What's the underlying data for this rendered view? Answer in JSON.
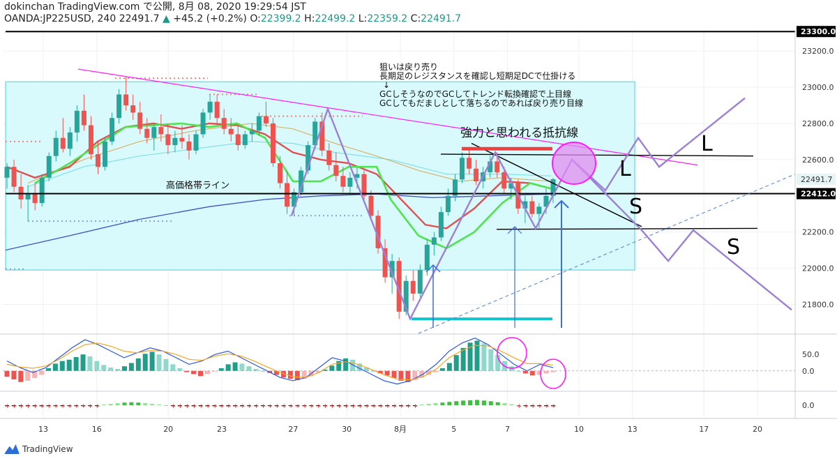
{
  "header": {
    "line1": "dokinchan TradingView.com で公開, 8月 08, 2020 19:29:54 JST",
    "symbol": "OANDA:JP225USD, 240",
    "last": "22491.7",
    "change": "+45.2 (+0.2%)",
    "o_label": "O:",
    "o": "22399.2",
    "h_label": "H:",
    "h": "22499.2",
    "l_label": "L:",
    "l": "22359.2",
    "c_label": "C:",
    "c": "22491.7"
  },
  "annotations": {
    "memo_lines": [
      "狙いは戻り売り",
      "長期足のレジスタンスを確認し短期足DCで仕掛ける",
      "↓",
      "GCしそうなのでGCしてトレンド転換確認で上目線",
      "GCしてもだましとして落ちるのであれば戻り売り目線"
    ],
    "resistance_label": "強力と思われる抵抗線",
    "band_label": "高価格帯ライン",
    "L1": "L",
    "L2": "L",
    "S1": "S",
    "S2": "S"
  },
  "footer": {
    "brand": "TradingView"
  },
  "colors": {
    "up": "#26a69a",
    "down": "#ef5350",
    "ma_green": "#4ee44e",
    "ma_red": "#e05050",
    "ma_tan": "#d7b26a",
    "ma_cyan": "#7fe0e8",
    "ma_blue": "#3f4fc8",
    "box_fill": "#d9fafc",
    "box_border": "#56dce4",
    "magenta": "#ff1aff",
    "purple": "#9d7fd6",
    "teal": "#14c2cc",
    "macd_blue": "#2a56e8",
    "macd_orange": "#f5a623"
  },
  "chart_data": {
    "type": "candlestick",
    "symbol": "OANDA:JP225USD",
    "timeframe": "240",
    "price_axis": {
      "ticks": [
        23300.0,
        23200.0,
        23000.0,
        22800.0,
        22600.0,
        22400.0,
        22200.0,
        22000.0,
        21800.0
      ],
      "ylim": [
        21640,
        23320
      ]
    },
    "x_ticks": [
      "13",
      "16",
      "20",
      "23",
      "27",
      "30",
      "8月",
      "5",
      "7",
      "10",
      "13",
      "17",
      "20"
    ],
    "x_tick_positions": [
      13,
      16,
      20,
      23,
      27,
      30,
      33,
      36,
      39,
      43,
      46,
      50,
      53
    ],
    "price_labels": [
      {
        "value": 22491.7,
        "text": "22491.7",
        "style": "last"
      },
      {
        "value": 22412.0,
        "text": "22412.0",
        "style": "black"
      },
      {
        "value": 23300.0,
        "text": "23300.0",
        "style": "black"
      }
    ],
    "ohlc": {
      "open": 22399.2,
      "high": 22499.2,
      "low": 22359.2,
      "close": 22491.7,
      "change": "+45.2 (+0.2%)"
    },
    "candles": [
      {
        "o": 22500,
        "h": 22580,
        "l": 22440,
        "c": 22560
      },
      {
        "o": 22560,
        "h": 22600,
        "l": 22420,
        "c": 22450
      },
      {
        "o": 22450,
        "h": 22520,
        "l": 22330,
        "c": 22380
      },
      {
        "o": 22380,
        "h": 22460,
        "l": 22260,
        "c": 22410
      },
      {
        "o": 22410,
        "h": 22470,
        "l": 22320,
        "c": 22360
      },
      {
        "o": 22360,
        "h": 22520,
        "l": 22340,
        "c": 22500
      },
      {
        "o": 22500,
        "h": 22640,
        "l": 22480,
        "c": 22620
      },
      {
        "o": 22620,
        "h": 22760,
        "l": 22590,
        "c": 22720
      },
      {
        "o": 22720,
        "h": 22830,
        "l": 22640,
        "c": 22660
      },
      {
        "o": 22660,
        "h": 22780,
        "l": 22620,
        "c": 22750
      },
      {
        "o": 22750,
        "h": 22900,
        "l": 22700,
        "c": 22870
      },
      {
        "o": 22870,
        "h": 22960,
        "l": 22760,
        "c": 22790
      },
      {
        "o": 22790,
        "h": 22840,
        "l": 22600,
        "c": 22630
      },
      {
        "o": 22630,
        "h": 22700,
        "l": 22520,
        "c": 22560
      },
      {
        "o": 22560,
        "h": 22720,
        "l": 22540,
        "c": 22700
      },
      {
        "o": 22700,
        "h": 22860,
        "l": 22680,
        "c": 22830
      },
      {
        "o": 22830,
        "h": 22990,
        "l": 22800,
        "c": 22960
      },
      {
        "o": 22960,
        "h": 23060,
        "l": 22870,
        "c": 22900
      },
      {
        "o": 22900,
        "h": 22960,
        "l": 22820,
        "c": 22860
      },
      {
        "o": 22860,
        "h": 22920,
        "l": 22740,
        "c": 22770
      },
      {
        "o": 22770,
        "h": 22830,
        "l": 22690,
        "c": 22720
      },
      {
        "o": 22720,
        "h": 22800,
        "l": 22650,
        "c": 22780
      },
      {
        "o": 22780,
        "h": 22850,
        "l": 22700,
        "c": 22740
      },
      {
        "o": 22740,
        "h": 22800,
        "l": 22630,
        "c": 22680
      },
      {
        "o": 22680,
        "h": 22760,
        "l": 22640,
        "c": 22720
      },
      {
        "o": 22720,
        "h": 22790,
        "l": 22660,
        "c": 22700
      },
      {
        "o": 22700,
        "h": 22740,
        "l": 22600,
        "c": 22650
      },
      {
        "o": 22650,
        "h": 22760,
        "l": 22630,
        "c": 22740
      },
      {
        "o": 22740,
        "h": 22880,
        "l": 22720,
        "c": 22860
      },
      {
        "o": 22860,
        "h": 22960,
        "l": 22820,
        "c": 22920
      },
      {
        "o": 22920,
        "h": 22960,
        "l": 22800,
        "c": 22830
      },
      {
        "o": 22830,
        "h": 22880,
        "l": 22740,
        "c": 22770
      },
      {
        "o": 22770,
        "h": 22830,
        "l": 22700,
        "c": 22740
      },
      {
        "o": 22740,
        "h": 22790,
        "l": 22650,
        "c": 22680
      },
      {
        "o": 22680,
        "h": 22760,
        "l": 22660,
        "c": 22740
      },
      {
        "o": 22740,
        "h": 22800,
        "l": 22700,
        "c": 22760
      },
      {
        "o": 22760,
        "h": 22860,
        "l": 22730,
        "c": 22840
      },
      {
        "o": 22840,
        "h": 22920,
        "l": 22780,
        "c": 22800
      },
      {
        "o": 22800,
        "h": 22830,
        "l": 22560,
        "c": 22580
      },
      {
        "o": 22580,
        "h": 22620,
        "l": 22440,
        "c": 22470
      },
      {
        "o": 22470,
        "h": 22540,
        "l": 22300,
        "c": 22340
      },
      {
        "o": 22340,
        "h": 22440,
        "l": 22290,
        "c": 22420
      },
      {
        "o": 22420,
        "h": 22560,
        "l": 22400,
        "c": 22540
      },
      {
        "o": 22540,
        "h": 22700,
        "l": 22520,
        "c": 22680
      },
      {
        "o": 22680,
        "h": 22830,
        "l": 22660,
        "c": 22810
      },
      {
        "o": 22810,
        "h": 22860,
        "l": 22620,
        "c": 22650
      },
      {
        "o": 22650,
        "h": 22690,
        "l": 22540,
        "c": 22570
      },
      {
        "o": 22570,
        "h": 22640,
        "l": 22480,
        "c": 22510
      },
      {
        "o": 22510,
        "h": 22560,
        "l": 22420,
        "c": 22450
      },
      {
        "o": 22450,
        "h": 22530,
        "l": 22400,
        "c": 22500
      },
      {
        "o": 22500,
        "h": 22560,
        "l": 22440,
        "c": 22520
      },
      {
        "o": 22520,
        "h": 22550,
        "l": 22380,
        "c": 22400
      },
      {
        "o": 22400,
        "h": 22430,
        "l": 22260,
        "c": 22290
      },
      {
        "o": 22290,
        "h": 22320,
        "l": 22080,
        "c": 22110
      },
      {
        "o": 22110,
        "h": 22160,
        "l": 21920,
        "c": 21950
      },
      {
        "o": 21950,
        "h": 22080,
        "l": 21860,
        "c": 22040
      },
      {
        "o": 22040,
        "h": 22060,
        "l": 21720,
        "c": 21760
      },
      {
        "o": 21760,
        "h": 21960,
        "l": 21740,
        "c": 21930
      },
      {
        "o": 21930,
        "h": 21990,
        "l": 21820,
        "c": 21860
      },
      {
        "o": 21860,
        "h": 22020,
        "l": 21840,
        "c": 21990
      },
      {
        "o": 21990,
        "h": 22160,
        "l": 21960,
        "c": 22130
      },
      {
        "o": 22130,
        "h": 22200,
        "l": 22070,
        "c": 22170
      },
      {
        "o": 22170,
        "h": 22340,
        "l": 22150,
        "c": 22310
      },
      {
        "o": 22310,
        "h": 22440,
        "l": 22290,
        "c": 22400
      },
      {
        "o": 22400,
        "h": 22520,
        "l": 22370,
        "c": 22490
      },
      {
        "o": 22490,
        "h": 22640,
        "l": 22470,
        "c": 22610
      },
      {
        "o": 22610,
        "h": 22660,
        "l": 22520,
        "c": 22550
      },
      {
        "o": 22550,
        "h": 22600,
        "l": 22460,
        "c": 22480
      },
      {
        "o": 22480,
        "h": 22560,
        "l": 22440,
        "c": 22530
      },
      {
        "o": 22530,
        "h": 22620,
        "l": 22500,
        "c": 22590
      },
      {
        "o": 22590,
        "h": 22640,
        "l": 22500,
        "c": 22530
      },
      {
        "o": 22530,
        "h": 22560,
        "l": 22410,
        "c": 22440
      },
      {
        "o": 22440,
        "h": 22500,
        "l": 22380,
        "c": 22470
      },
      {
        "o": 22470,
        "h": 22490,
        "l": 22300,
        "c": 22330
      },
      {
        "o": 22330,
        "h": 22400,
        "l": 22250,
        "c": 22370
      },
      {
        "o": 22370,
        "h": 22400,
        "l": 22280,
        "c": 22300
      },
      {
        "o": 22300,
        "h": 22360,
        "l": 22220,
        "c": 22340
      },
      {
        "o": 22340,
        "h": 22440,
        "l": 22300,
        "c": 22400
      },
      {
        "o": 22399.2,
        "h": 22499.2,
        "l": 22359.2,
        "c": 22491.7
      }
    ],
    "moving_averages": [
      {
        "name": "short",
        "color": "#4ee44e"
      },
      {
        "name": "mid",
        "color": "#e05050"
      },
      {
        "name": "long1",
        "color": "#d7b26a"
      },
      {
        "name": "long2",
        "color": "#7fe0e8"
      },
      {
        "name": "long3",
        "color": "#3f4fc8"
      }
    ],
    "macd": {
      "ticks": [
        50.0,
        0.0
      ],
      "ylim": [
        -60,
        110
      ],
      "hist": [
        -18,
        -26,
        -34,
        -30,
        -22,
        -12,
        8,
        22,
        30,
        34,
        42,
        50,
        44,
        30,
        18,
        10,
        6,
        14,
        24,
        38,
        52,
        58,
        50,
        36,
        20,
        8,
        -4,
        -10,
        -16,
        -10,
        -2,
        8,
        20,
        26,
        22,
        14,
        6,
        0,
        -6,
        -12,
        -20,
        -24,
        -28,
        -24,
        -16,
        -6,
        4,
        16,
        30,
        38,
        34,
        22,
        10,
        0,
        -8,
        -14,
        -22,
        -30,
        -34,
        -28,
        -20,
        -12,
        -4,
        8,
        24,
        48,
        70,
        86,
        92,
        84,
        66,
        48,
        30,
        14,
        0,
        -8,
        -14,
        -12,
        -8,
        -4
      ]
    },
    "sub_indicator": {
      "ticks": [
        0.0
      ],
      "ylim": [
        -40,
        40
      ],
      "hist": [
        -3,
        -3,
        -3,
        -3,
        -3,
        -3,
        -3,
        -2,
        -2,
        -2,
        -2,
        -2,
        -2,
        -2,
        2,
        4,
        6,
        8,
        9,
        8,
        6,
        4,
        2,
        0,
        -2,
        -3,
        -3,
        -3,
        -3,
        -3,
        -3,
        -3,
        -3,
        -3,
        -3,
        -2,
        -2,
        -2,
        -2,
        -2,
        -2,
        -2,
        -2,
        -2,
        -2,
        -2,
        -2,
        -2,
        -3,
        -3,
        -3,
        -3,
        -3,
        -3,
        -3,
        -3,
        -3,
        -3,
        -3,
        -2,
        2,
        4,
        6,
        8,
        10,
        12,
        14,
        15,
        16,
        14,
        12,
        9,
        6,
        3,
        -1,
        -2,
        -3,
        -3,
        -3,
        -3
      ]
    }
  }
}
